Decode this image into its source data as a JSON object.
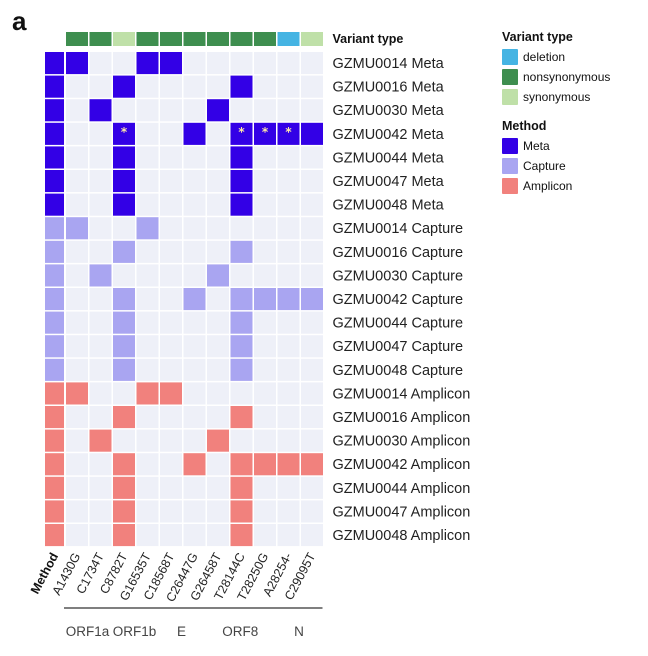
{
  "panel_label": "a",
  "colors": {
    "background_cell": "#eef0f8",
    "grid_line": "#ffffff",
    "meta": "#3300e6",
    "capture": "#a9a5f1",
    "amplicon": "#f1817d",
    "deletion": "#45b4e3",
    "nonsynonymous": "#3e8e4f",
    "synonymous": "#bfe0a8"
  },
  "legend": {
    "variant_type": {
      "title": "Variant type",
      "items": [
        {
          "label": "deletion",
          "color": "#45b4e3"
        },
        {
          "label": "nonsynonymous",
          "color": "#3e8e4f"
        },
        {
          "label": "synonymous",
          "color": "#bfe0a8"
        }
      ]
    },
    "method": {
      "title": "Method",
      "items": [
        {
          "label": "Meta",
          "color": "#3300e6"
        },
        {
          "label": "Capture",
          "color": "#a9a5f1"
        },
        {
          "label": "Amplicon",
          "color": "#f1817d"
        }
      ]
    }
  },
  "chart_data": {
    "type": "heatmap",
    "variant_type_label": "Variant type",
    "method_label": "Method",
    "columns": [
      "A1430G",
      "C1734T",
      "C8782T",
      "G16535T",
      "C18568T",
      "C26447G",
      "G26458T",
      "T28144C",
      "T28250G",
      "A28254-",
      "C29095T"
    ],
    "column_variant_types": [
      "nonsynonymous",
      "nonsynonymous",
      "synonymous",
      "nonsynonymous",
      "nonsynonymous",
      "nonsynonymous",
      "nonsynonymous",
      "nonsynonymous",
      "nonsynonymous",
      "deletion",
      "synonymous"
    ],
    "genes": [
      {
        "label": "ORF1a",
        "columns": [
          0,
          1
        ]
      },
      {
        "label": "ORF1b",
        "columns": [
          2,
          3
        ]
      },
      {
        "label": "E",
        "columns": [
          4,
          5
        ]
      },
      {
        "label": "ORF8",
        "columns": [
          6,
          7,
          8
        ]
      },
      {
        "label": "N",
        "columns": [
          9,
          10
        ]
      }
    ],
    "rows": [
      {
        "label": "GZMU0014 Meta",
        "method": "Meta",
        "cells": [
          1,
          0,
          0,
          1,
          1,
          0,
          0,
          0,
          0,
          0,
          0
        ],
        "stars": []
      },
      {
        "label": "GZMU0016 Meta",
        "method": "Meta",
        "cells": [
          0,
          0,
          1,
          0,
          0,
          0,
          0,
          1,
          0,
          0,
          0
        ],
        "stars": []
      },
      {
        "label": "GZMU0030 Meta",
        "method": "Meta",
        "cells": [
          0,
          1,
          0,
          0,
          0,
          0,
          1,
          0,
          0,
          0,
          0
        ],
        "stars": []
      },
      {
        "label": "GZMU0042 Meta",
        "method": "Meta",
        "cells": [
          0,
          0,
          1,
          0,
          0,
          1,
          0,
          1,
          1,
          1,
          1
        ],
        "stars": [
          2,
          7,
          8,
          9
        ]
      },
      {
        "label": "GZMU0044 Meta",
        "method": "Meta",
        "cells": [
          0,
          0,
          1,
          0,
          0,
          0,
          0,
          1,
          0,
          0,
          0
        ],
        "stars": []
      },
      {
        "label": "GZMU0047 Meta",
        "method": "Meta",
        "cells": [
          0,
          0,
          1,
          0,
          0,
          0,
          0,
          1,
          0,
          0,
          0
        ],
        "stars": []
      },
      {
        "label": "GZMU0048 Meta",
        "method": "Meta",
        "cells": [
          0,
          0,
          1,
          0,
          0,
          0,
          0,
          1,
          0,
          0,
          0
        ],
        "stars": []
      },
      {
        "label": "GZMU0014 Capture",
        "method": "Capture",
        "cells": [
          1,
          0,
          0,
          1,
          0,
          0,
          0,
          0,
          0,
          0,
          0
        ],
        "stars": []
      },
      {
        "label": "GZMU0016 Capture",
        "method": "Capture",
        "cells": [
          0,
          0,
          1,
          0,
          0,
          0,
          0,
          1,
          0,
          0,
          0
        ],
        "stars": []
      },
      {
        "label": "GZMU0030 Capture",
        "method": "Capture",
        "cells": [
          0,
          1,
          0,
          0,
          0,
          0,
          1,
          0,
          0,
          0,
          0
        ],
        "stars": []
      },
      {
        "label": "GZMU0042 Capture",
        "method": "Capture",
        "cells": [
          0,
          0,
          1,
          0,
          0,
          1,
          0,
          1,
          1,
          1,
          1
        ],
        "stars": []
      },
      {
        "label": "GZMU0044 Capture",
        "method": "Capture",
        "cells": [
          0,
          0,
          1,
          0,
          0,
          0,
          0,
          1,
          0,
          0,
          0
        ],
        "stars": []
      },
      {
        "label": "GZMU0047 Capture",
        "method": "Capture",
        "cells": [
          0,
          0,
          1,
          0,
          0,
          0,
          0,
          1,
          0,
          0,
          0
        ],
        "stars": []
      },
      {
        "label": "GZMU0048 Capture",
        "method": "Capture",
        "cells": [
          0,
          0,
          1,
          0,
          0,
          0,
          0,
          1,
          0,
          0,
          0
        ],
        "stars": []
      },
      {
        "label": "GZMU0014 Amplicon",
        "method": "Amplicon",
        "cells": [
          1,
          0,
          0,
          1,
          1,
          0,
          0,
          0,
          0,
          0,
          0
        ],
        "stars": []
      },
      {
        "label": "GZMU0016 Amplicon",
        "method": "Amplicon",
        "cells": [
          0,
          0,
          1,
          0,
          0,
          0,
          0,
          1,
          0,
          0,
          0
        ],
        "stars": []
      },
      {
        "label": "GZMU0030 Amplicon",
        "method": "Amplicon",
        "cells": [
          0,
          1,
          0,
          0,
          0,
          0,
          1,
          0,
          0,
          0,
          0
        ],
        "stars": []
      },
      {
        "label": "GZMU0042 Amplicon",
        "method": "Amplicon",
        "cells": [
          0,
          0,
          1,
          0,
          0,
          1,
          0,
          1,
          1,
          1,
          1
        ],
        "stars": []
      },
      {
        "label": "GZMU0044 Amplicon",
        "method": "Amplicon",
        "cells": [
          0,
          0,
          1,
          0,
          0,
          0,
          0,
          1,
          0,
          0,
          0
        ],
        "stars": []
      },
      {
        "label": "GZMU0047 Amplicon",
        "method": "Amplicon",
        "cells": [
          0,
          0,
          1,
          0,
          0,
          0,
          0,
          1,
          0,
          0,
          0
        ],
        "stars": []
      },
      {
        "label": "GZMU0048 Amplicon",
        "method": "Amplicon",
        "cells": [
          0,
          0,
          1,
          0,
          0,
          0,
          0,
          1,
          0,
          0,
          0
        ],
        "stars": []
      }
    ]
  }
}
